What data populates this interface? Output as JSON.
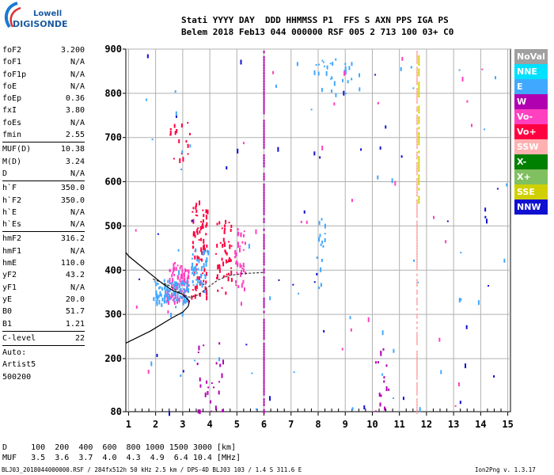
{
  "logo": {
    "line1": "Lowell",
    "line2": "DIGISONDE"
  },
  "header": {
    "labels": "Stati YYYY DAY  DDD HHMMSS P1  FFS S AXN PPS IGA PS",
    "values": "Belem 2018 Feb13 044 000000 RSF 005 2 713 100 03+ C0"
  },
  "sidebar": {
    "group1": [
      {
        "label": "foF2",
        "value": "3.200"
      },
      {
        "label": "foF1",
        "value": "N/A"
      },
      {
        "label": "foF1p",
        "value": "N/A"
      },
      {
        "label": "foE",
        "value": "N/A"
      },
      {
        "label": "foEp",
        "value": "0.36"
      },
      {
        "label": "fxI",
        "value": "3.80"
      },
      {
        "label": "foEs",
        "value": "N/A"
      },
      {
        "label": "fmin",
        "value": "2.55"
      }
    ],
    "group2": [
      {
        "label": "MUF(D)",
        "value": "10.38"
      },
      {
        "label": "M(D)",
        "value": "3.24"
      },
      {
        "label": "D",
        "value": "N/A"
      }
    ],
    "group3": [
      {
        "label": "h`F",
        "value": "350.0"
      },
      {
        "label": "h`F2",
        "value": "350.0"
      },
      {
        "label": "h`E",
        "value": "N/A"
      },
      {
        "label": "h`Es",
        "value": "N/A"
      }
    ],
    "group4": [
      {
        "label": "hmF2",
        "value": "316.2"
      },
      {
        "label": "hmF1",
        "value": "N/A"
      },
      {
        "label": "hmE",
        "value": "110.0"
      },
      {
        "label": "yF2",
        "value": "43.2"
      },
      {
        "label": "yF1",
        "value": "N/A"
      },
      {
        "label": "yE",
        "value": "20.0"
      },
      {
        "label": "B0",
        "value": "51.7"
      },
      {
        "label": "B1",
        "value": "1.21"
      }
    ],
    "clevel": {
      "label": "C-level",
      "value": "22"
    },
    "auto": [
      "Auto:",
      "Artist5",
      "500200"
    ]
  },
  "legend": [
    {
      "label": "NoVal",
      "color": "#a0a0a0"
    },
    {
      "label": "NNE",
      "color": "#00e0ff"
    },
    {
      "label": "E",
      "color": "#40a8ff"
    },
    {
      "label": "W",
      "color": "#b000b0"
    },
    {
      "label": "Vo-",
      "color": "#ff40c0"
    },
    {
      "label": "Vo+",
      "color": "#ff0040"
    },
    {
      "label": "SSW",
      "color": "#ffb0b0"
    },
    {
      "label": "X-",
      "color": "#008000"
    },
    {
      "label": "X+",
      "color": "#80c060"
    },
    {
      "label": "SSE",
      "color": "#d0d000"
    },
    {
      "label": "NNW",
      "color": "#1010d0"
    }
  ],
  "chart_data": {
    "type": "scatter",
    "x_ticks": [
      "1",
      "2",
      "3",
      "4",
      "5",
      "6",
      "7",
      "8",
      "9",
      "10",
      "11",
      "12",
      "13",
      "14",
      "15"
    ],
    "y_ticks": [
      "80",
      "200",
      "300",
      "400",
      "500",
      "600",
      "700",
      "800",
      "900"
    ],
    "xlim": [
      0.9,
      15.1
    ],
    "ylim": [
      80,
      900
    ],
    "grid": true,
    "trace": [
      [
        0.9,
        235
      ],
      [
        1.8,
        262
      ],
      [
        2.6,
        292
      ],
      [
        3.0,
        305
      ],
      [
        3.2,
        318
      ],
      [
        3.25,
        330
      ],
      [
        3.0,
        345
      ],
      [
        2.6,
        355
      ],
      [
        2.2,
        372
      ],
      [
        1.8,
        392
      ],
      [
        1.4,
        412
      ],
      [
        1.0,
        432
      ],
      [
        0.9,
        440
      ]
    ],
    "trace2": [
      [
        1.9,
        380
      ],
      [
        2.5,
        365
      ],
      [
        3.0,
        345
      ],
      [
        3.3,
        338
      ],
      [
        3.6,
        345
      ],
      [
        3.9,
        360
      ],
      [
        4.3,
        378
      ],
      [
        4.7,
        388
      ],
      [
        5.2,
        392
      ],
      [
        6.0,
        395
      ]
    ],
    "clusters": [
      {
        "x": [
          1.9,
          2.4
        ],
        "y": [
          320,
          380
        ],
        "color": "#40a8ff",
        "n": 40
      },
      {
        "x": [
          2.4,
          3.2
        ],
        "y": [
          330,
          420
        ],
        "color": "#ff40c0",
        "n": 90
      },
      {
        "x": [
          2.4,
          3.2
        ],
        "y": [
          330,
          380
        ],
        "color": "#40a8ff",
        "n": 60
      },
      {
        "x": [
          3.3,
          3.9
        ],
        "y": [
          340,
          560
        ],
        "color": "#ff0040",
        "n": 80
      },
      {
        "x": [
          3.3,
          3.9
        ],
        "y": [
          350,
          450
        ],
        "color": "#40a8ff",
        "n": 40
      },
      {
        "x": [
          4.2,
          4.8
        ],
        "y": [
          350,
          520
        ],
        "color": "#ff0040",
        "n": 50
      },
      {
        "x": [
          4.9,
          5.3
        ],
        "y": [
          360,
          500
        ],
        "color": "#ff40c0",
        "n": 40
      },
      {
        "x": [
          2.5,
          3.3
        ],
        "y": [
          650,
          740
        ],
        "color": "#ff0040",
        "n": 18
      },
      {
        "x": [
          3.4,
          4.5
        ],
        "y": [
          80,
          240
        ],
        "color": "#b000b0",
        "n": 25
      },
      {
        "x": [
          7.8,
          9.5
        ],
        "y": [
          800,
          880
        ],
        "color": "#40a8ff",
        "n": 30
      },
      {
        "x": [
          7.9,
          8.3
        ],
        "y": [
          360,
          520
        ],
        "color": "#40a8ff",
        "n": 15
      },
      {
        "x": [
          10.1,
          10.6
        ],
        "y": [
          80,
          230
        ],
        "color": "#b000b0",
        "n": 15
      },
      {
        "x": [
          1.0,
          15.0
        ],
        "y": [
          80,
          900
        ],
        "color": "#40a8ff",
        "n": 50
      },
      {
        "x": [
          1.0,
          15.0
        ],
        "y": [
          80,
          900
        ],
        "color": "#1010d0",
        "n": 40
      },
      {
        "x": [
          1.0,
          15.0
        ],
        "y": [
          80,
          900
        ],
        "color": "#ff40c0",
        "n": 30
      }
    ],
    "columns": [
      {
        "x": 6.0,
        "y": [
          80,
          900
        ],
        "color": "#b000b0"
      },
      {
        "x": 11.65,
        "y": [
          80,
          900
        ],
        "color": "#ffb0b0"
      },
      {
        "x": 11.72,
        "y": [
          550,
          890
        ],
        "color": "#d0d000"
      }
    ]
  },
  "bottom": {
    "row1": "D     100  200  400  600  800 1000 1500 3000 [km]",
    "row2": "MUF   3.5  3.6  3.7  4.0  4.3  4.9  6.4 10.4 [MHz]"
  },
  "footer": {
    "left": "BLJ03_2018044000000.RSF / 284fx512h 50 kHz 2.5 km / DPS-4D BLJ03 103 / 1.4 S 311.6 E",
    "right": "Ion2Png v. 1.3.17"
  }
}
